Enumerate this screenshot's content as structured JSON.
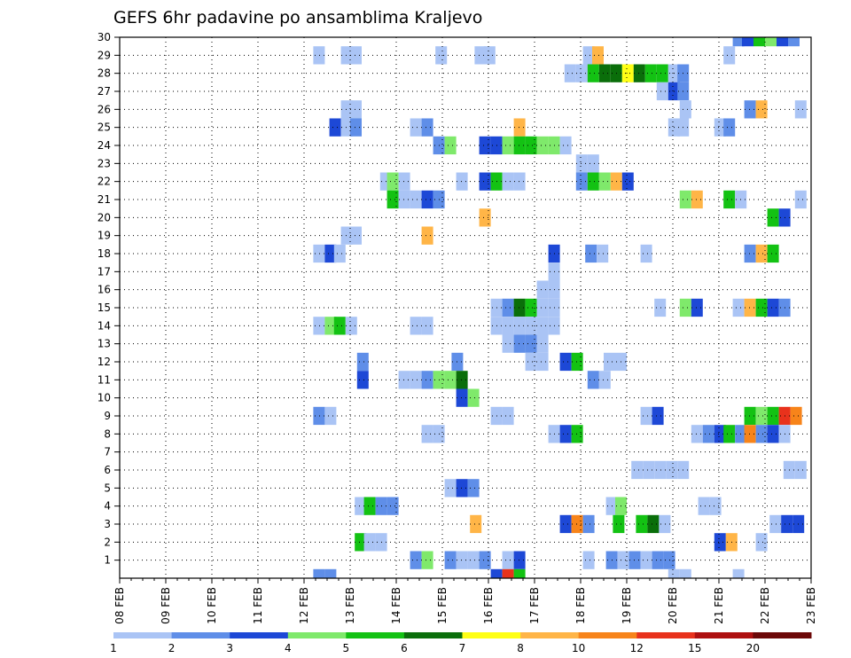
{
  "chart_data": {
    "type": "heatmap",
    "title": "GEFS 6hr padavine po ansamblima Kraljevo",
    "xlabel": "",
    "ylabel": "",
    "x_tick_labels": [
      "08 FEB",
      "09 FEB",
      "10 FEB",
      "11 FEB",
      "12 FEB",
      "13 FEB",
      "14 FEB",
      "15 FEB",
      "16 FEB",
      "17 FEB",
      "18 FEB",
      "19 FEB",
      "20 FEB",
      "21 FEB",
      "22 FEB",
      "23 FEB"
    ],
    "x_range_days": [
      0,
      15
    ],
    "x_step_hours": 6,
    "y_tick_labels": [
      "1",
      "2",
      "3",
      "4",
      "5",
      "6",
      "7",
      "8",
      "9",
      "10",
      "11",
      "12",
      "13",
      "14",
      "15",
      "16",
      "17",
      "18",
      "19",
      "20",
      "21",
      "22",
      "23",
      "24",
      "25",
      "26",
      "27",
      "28",
      "29",
      "30"
    ],
    "y_range": [
      0,
      30
    ],
    "grid": true,
    "legend_placement": "bottom",
    "colorbar": {
      "labels": [
        "1",
        "2",
        "3",
        "4",
        "5",
        "6",
        "7",
        "8",
        "10",
        "12",
        "15",
        "20"
      ],
      "colors": [
        "#aac4f5",
        "#5f8ee8",
        "#1d48d6",
        "#7fe96b",
        "#13c213",
        "#0a6e0a",
        "#ffff16",
        "#ffb547",
        "#f7841a",
        "#e8321c",
        "#ae1010",
        "#6c0808"
      ]
    },
    "values_note": "cells: [day_offset_from_08_FEB, member, precipitation_mm]",
    "cells": [
      [
        13.3,
        30,
        2
      ],
      [
        13.5,
        30,
        3
      ],
      [
        13.75,
        30,
        5
      ],
      [
        14.0,
        30,
        4
      ],
      [
        14.25,
        30,
        3
      ],
      [
        14.5,
        30,
        2
      ],
      [
        4.2,
        29,
        1
      ],
      [
        4.8,
        29,
        1
      ],
      [
        5.0,
        29,
        1
      ],
      [
        6.85,
        29,
        1
      ],
      [
        7.7,
        29,
        1
      ],
      [
        7.9,
        29,
        1
      ],
      [
        10.05,
        29,
        1
      ],
      [
        10.25,
        29,
        9
      ],
      [
        13.1,
        29,
        1
      ],
      [
        9.65,
        28,
        1
      ],
      [
        9.9,
        28,
        1
      ],
      [
        10.15,
        28,
        5
      ],
      [
        10.4,
        28,
        6
      ],
      [
        10.65,
        28,
        6
      ],
      [
        10.9,
        28,
        7
      ],
      [
        11.15,
        28,
        6
      ],
      [
        11.4,
        28,
        5
      ],
      [
        11.65,
        28,
        5
      ],
      [
        11.9,
        28,
        1
      ],
      [
        12.1,
        28,
        2
      ],
      [
        11.65,
        27,
        1
      ],
      [
        11.9,
        27,
        3
      ],
      [
        12.1,
        27,
        2
      ],
      [
        4.8,
        26,
        1
      ],
      [
        5.0,
        26,
        1
      ],
      [
        12.15,
        26,
        1
      ],
      [
        13.55,
        26,
        2
      ],
      [
        13.8,
        26,
        9
      ],
      [
        14.65,
        26,
        1
      ],
      [
        4.55,
        25,
        3
      ],
      [
        4.8,
        25,
        1
      ],
      [
        5.0,
        25,
        2
      ],
      [
        6.3,
        25,
        1
      ],
      [
        6.55,
        25,
        2
      ],
      [
        8.55,
        25,
        9
      ],
      [
        11.9,
        25,
        1
      ],
      [
        12.1,
        25,
        1
      ],
      [
        12.9,
        25,
        1
      ],
      [
        13.1,
        25,
        2
      ],
      [
        6.8,
        24,
        2
      ],
      [
        7.05,
        24,
        4
      ],
      [
        7.8,
        24,
        3
      ],
      [
        8.05,
        24,
        3
      ],
      [
        8.3,
        24,
        4
      ],
      [
        8.55,
        24,
        5
      ],
      [
        8.8,
        24,
        5
      ],
      [
        9.05,
        24,
        4
      ],
      [
        9.3,
        24,
        4
      ],
      [
        9.55,
        24,
        1
      ],
      [
        9.9,
        23,
        1
      ],
      [
        10.15,
        23,
        1
      ],
      [
        5.65,
        22,
        1
      ],
      [
        5.8,
        22,
        4
      ],
      [
        6.05,
        22,
        1
      ],
      [
        7.3,
        22,
        1
      ],
      [
        7.8,
        22,
        3
      ],
      [
        8.05,
        22,
        5
      ],
      [
        8.3,
        22,
        1
      ],
      [
        8.55,
        22,
        1
      ],
      [
        9.9,
        22,
        2
      ],
      [
        10.15,
        22,
        5
      ],
      [
        10.4,
        22,
        4
      ],
      [
        10.65,
        22,
        9
      ],
      [
        10.9,
        22,
        3
      ],
      [
        5.8,
        21,
        5
      ],
      [
        6.05,
        21,
        1
      ],
      [
        6.3,
        21,
        1
      ],
      [
        6.55,
        21,
        3
      ],
      [
        6.8,
        21,
        2
      ],
      [
        12.15,
        21,
        4
      ],
      [
        12.4,
        21,
        9
      ],
      [
        13.1,
        21,
        5
      ],
      [
        13.35,
        21,
        1
      ],
      [
        14.65,
        21,
        1
      ],
      [
        7.8,
        20,
        9
      ],
      [
        14.05,
        20,
        5
      ],
      [
        14.3,
        20,
        3
      ],
      [
        4.8,
        19,
        1
      ],
      [
        5.0,
        19,
        1
      ],
      [
        6.55,
        19,
        9
      ],
      [
        4.2,
        18,
        1
      ],
      [
        4.45,
        18,
        3
      ],
      [
        4.65,
        18,
        1
      ],
      [
        9.3,
        18,
        3
      ],
      [
        10.1,
        18,
        2
      ],
      [
        10.35,
        18,
        1
      ],
      [
        11.3,
        18,
        1
      ],
      [
        13.55,
        18,
        2
      ],
      [
        13.8,
        18,
        8
      ],
      [
        14.05,
        18,
        5
      ],
      [
        9.3,
        17,
        1
      ],
      [
        9.05,
        16,
        1
      ],
      [
        9.3,
        16,
        1
      ],
      [
        8.05,
        15,
        1
      ],
      [
        8.3,
        15,
        2
      ],
      [
        8.55,
        15,
        6
      ],
      [
        8.8,
        15,
        5
      ],
      [
        9.05,
        15,
        1
      ],
      [
        9.3,
        15,
        1
      ],
      [
        11.6,
        15,
        1
      ],
      [
        12.15,
        15,
        4
      ],
      [
        12.4,
        15,
        3
      ],
      [
        13.3,
        15,
        1
      ],
      [
        13.55,
        15,
        8
      ],
      [
        13.8,
        15,
        5
      ],
      [
        14.05,
        15,
        3
      ],
      [
        14.3,
        15,
        2
      ],
      [
        4.2,
        14,
        1
      ],
      [
        4.45,
        14,
        4
      ],
      [
        4.65,
        14,
        5
      ],
      [
        4.9,
        14,
        1
      ],
      [
        6.3,
        14,
        1
      ],
      [
        6.55,
        14,
        1
      ],
      [
        8.05,
        14,
        1
      ],
      [
        8.3,
        14,
        1
      ],
      [
        8.55,
        14,
        1
      ],
      [
        8.8,
        14,
        1
      ],
      [
        9.05,
        14,
        1
      ],
      [
        9.3,
        14,
        1
      ],
      [
        8.3,
        13,
        1
      ],
      [
        8.55,
        13,
        2
      ],
      [
        8.8,
        13,
        2
      ],
      [
        9.05,
        13,
        1
      ],
      [
        5.15,
        12,
        2
      ],
      [
        7.2,
        12,
        2
      ],
      [
        8.8,
        12,
        1
      ],
      [
        9.05,
        12,
        1
      ],
      [
        9.55,
        12,
        3
      ],
      [
        9.8,
        12,
        5
      ],
      [
        10.5,
        12,
        1
      ],
      [
        10.75,
        12,
        1
      ],
      [
        5.15,
        11,
        3
      ],
      [
        6.05,
        11,
        1
      ],
      [
        6.3,
        11,
        1
      ],
      [
        6.55,
        11,
        2
      ],
      [
        6.8,
        11,
        4
      ],
      [
        7.05,
        11,
        4
      ],
      [
        7.3,
        11,
        6
      ],
      [
        10.15,
        11,
        2
      ],
      [
        10.4,
        11,
        1
      ],
      [
        7.3,
        10,
        3
      ],
      [
        7.55,
        10,
        4
      ],
      [
        4.2,
        9,
        2
      ],
      [
        4.45,
        9,
        1
      ],
      [
        8.05,
        9,
        1
      ],
      [
        8.3,
        9,
        1
      ],
      [
        11.3,
        9,
        1
      ],
      [
        11.55,
        9,
        3
      ],
      [
        13.55,
        9,
        5
      ],
      [
        13.8,
        9,
        4
      ],
      [
        14.05,
        9,
        5
      ],
      [
        14.3,
        9,
        12
      ],
      [
        14.55,
        9,
        10
      ],
      [
        6.55,
        8,
        1
      ],
      [
        6.8,
        8,
        1
      ],
      [
        9.3,
        8,
        1
      ],
      [
        9.55,
        8,
        3
      ],
      [
        9.8,
        8,
        5
      ],
      [
        12.4,
        8,
        1
      ],
      [
        12.65,
        8,
        2
      ],
      [
        12.9,
        8,
        3
      ],
      [
        13.1,
        8,
        5
      ],
      [
        13.35,
        8,
        2
      ],
      [
        13.55,
        8,
        10
      ],
      [
        13.8,
        8,
        2
      ],
      [
        14.05,
        8,
        3
      ],
      [
        14.3,
        8,
        1
      ],
      [
        11.1,
        6,
        1
      ],
      [
        11.35,
        6,
        1
      ],
      [
        11.6,
        6,
        1
      ],
      [
        11.85,
        6,
        1
      ],
      [
        12.1,
        6,
        1
      ],
      [
        14.4,
        6,
        1
      ],
      [
        14.65,
        6,
        1
      ],
      [
        7.05,
        5,
        1
      ],
      [
        7.3,
        5,
        3
      ],
      [
        7.55,
        5,
        2
      ],
      [
        5.1,
        4,
        1
      ],
      [
        5.3,
        4,
        5
      ],
      [
        5.55,
        4,
        2
      ],
      [
        5.8,
        4,
        2
      ],
      [
        10.55,
        4,
        1
      ],
      [
        10.75,
        4,
        4
      ],
      [
        12.55,
        4,
        1
      ],
      [
        12.8,
        4,
        1
      ],
      [
        7.6,
        3,
        8
      ],
      [
        9.55,
        3,
        3
      ],
      [
        9.8,
        3,
        10
      ],
      [
        10.05,
        3,
        2
      ],
      [
        10.7,
        3,
        5
      ],
      [
        11.2,
        3,
        5
      ],
      [
        11.45,
        3,
        6
      ],
      [
        11.7,
        3,
        1
      ],
      [
        14.1,
        3,
        1
      ],
      [
        14.35,
        3,
        3
      ],
      [
        14.6,
        3,
        3
      ],
      [
        5.1,
        2,
        5
      ],
      [
        5.3,
        2,
        1
      ],
      [
        5.55,
        2,
        1
      ],
      [
        12.9,
        2,
        3
      ],
      [
        13.15,
        2,
        8
      ],
      [
        13.8,
        2,
        1
      ],
      [
        6.3,
        1,
        2
      ],
      [
        6.55,
        1,
        4
      ],
      [
        7.05,
        1,
        2
      ],
      [
        7.3,
        1,
        1
      ],
      [
        7.55,
        1,
        1
      ],
      [
        7.8,
        1,
        2
      ],
      [
        8.3,
        1,
        1
      ],
      [
        8.55,
        1,
        3
      ],
      [
        10.05,
        1,
        1
      ],
      [
        10.55,
        1,
        2
      ],
      [
        10.8,
        1,
        1
      ],
      [
        11.05,
        1,
        2
      ],
      [
        11.3,
        1,
        1
      ],
      [
        11.55,
        1,
        2
      ],
      [
        11.8,
        1,
        2
      ],
      [
        4.2,
        0,
        2
      ],
      [
        4.45,
        0,
        2
      ],
      [
        8.05,
        0,
        3
      ],
      [
        8.3,
        0,
        13
      ],
      [
        8.55,
        0,
        5
      ],
      [
        11.9,
        0,
        1
      ],
      [
        12.15,
        0,
        1
      ],
      [
        13.3,
        0,
        1
      ]
    ]
  }
}
